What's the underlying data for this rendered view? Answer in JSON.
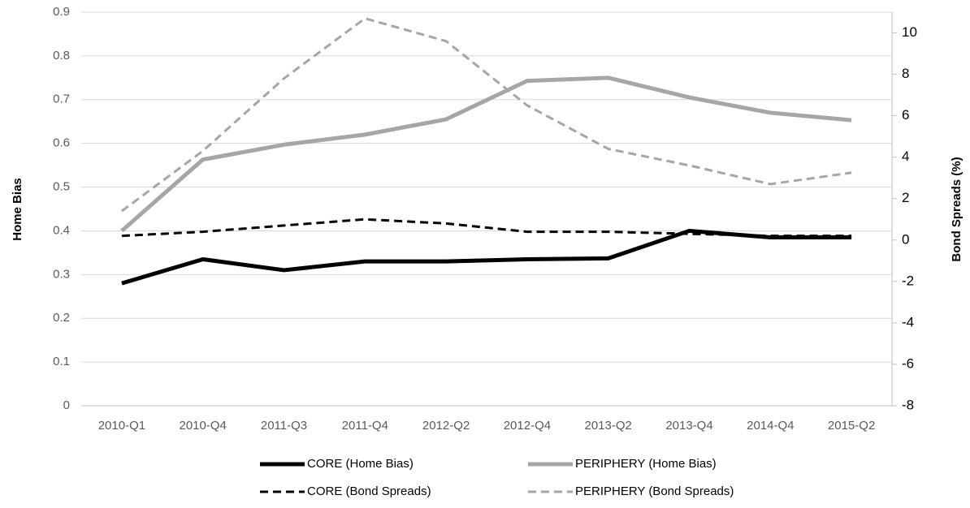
{
  "chart_data": {
    "type": "line",
    "categories": [
      "2010-Q1",
      "2010-Q4",
      "2011-Q3",
      "2011-Q4",
      "2012-Q2",
      "2012-Q4",
      "2013-Q2",
      "2013-Q4",
      "2014-Q4",
      "2015-Q2"
    ],
    "y_label": "Home Bias",
    "y2_label": "Bond Spreads (%)",
    "ylim": [
      0,
      0.9
    ],
    "yticks": [
      0,
      0.1,
      0.2,
      0.3,
      0.4,
      0.5,
      0.6,
      0.7,
      0.8,
      0.9
    ],
    "y2lim": [
      -8,
      11
    ],
    "y2ticks": [
      -8,
      -6,
      -4,
      -2,
      0,
      2,
      4,
      6,
      8,
      10
    ],
    "grid": true,
    "series": [
      {
        "name": "CORE (Home Bias)",
        "color": "#000000",
        "dash": false,
        "values": [
          0.28,
          0.335,
          0.31,
          0.33,
          0.33,
          0.335,
          0.337,
          0.4,
          0.385,
          0.385
        ]
      },
      {
        "name": "PERIPHERY (Home Bias)",
        "color": "#a6a6a6",
        "dash": false,
        "values": [
          0.4,
          0.563,
          0.597,
          0.62,
          0.655,
          0.743,
          0.75,
          0.705,
          0.67,
          0.653
        ]
      },
      {
        "name": "CORE (Bond Spreads)",
        "color": "#000000",
        "dash": true,
        "axis": "y2",
        "values": [
          0.2,
          0.4,
          0.7,
          1.0,
          0.8,
          0.4,
          0.4,
          0.3,
          0.2,
          0.2
        ]
      },
      {
        "name": "PERIPHERY (Bond Spreads)",
        "color": "#a6a6a6",
        "dash": true,
        "axis": "y2",
        "values": [
          1.4,
          4.3,
          7.8,
          10.7,
          9.6,
          6.5,
          4.4,
          3.6,
          2.7,
          3.25
        ]
      }
    ]
  }
}
